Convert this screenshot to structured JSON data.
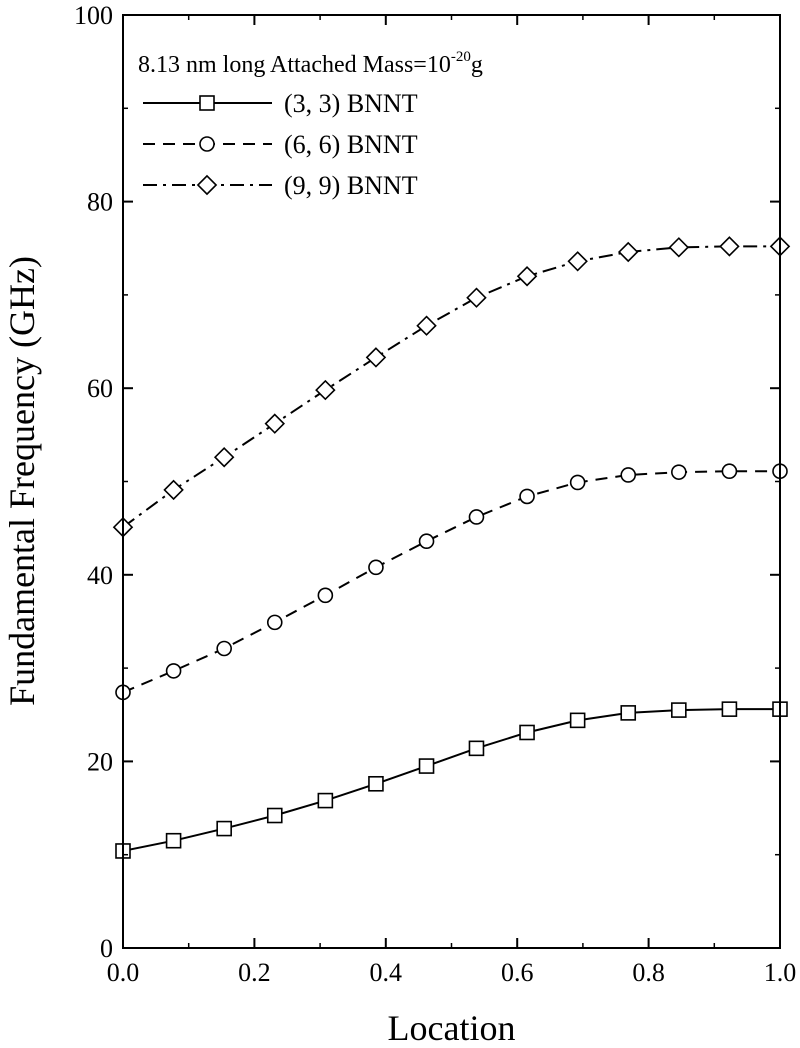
{
  "chart_data": {
    "type": "line",
    "xlabel": "Location",
    "ylabel": "Fundamental Frequency (GHz)",
    "xlim": [
      0.0,
      1.0
    ],
    "ylim": [
      0,
      100
    ],
    "xticks": [
      0.0,
      0.2,
      0.4,
      0.6,
      0.8,
      1.0
    ],
    "xtick_labels": [
      "0.0",
      "0.2",
      "0.4",
      "0.6",
      "0.8",
      "1.0"
    ],
    "yticks": [
      0,
      20,
      40,
      60,
      80,
      100
    ],
    "ytick_labels": [
      "0",
      "20",
      "40",
      "60",
      "80",
      "100"
    ],
    "grid": false,
    "legend_position": "top-left",
    "annotation": {
      "prefix": "8.13 nm long Attached Mass=10",
      "exponent": "-20",
      "suffix": "g"
    },
    "x": [
      0.0,
      0.077,
      0.154,
      0.231,
      0.308,
      0.385,
      0.462,
      0.538,
      0.615,
      0.692,
      0.769,
      0.846,
      0.923,
      1.0
    ],
    "series": [
      {
        "name": "(3, 3) BNNT",
        "marker": "square",
        "line_style": "solid",
        "values": [
          10.4,
          11.5,
          12.8,
          14.2,
          15.8,
          17.6,
          19.5,
          21.4,
          23.1,
          24.4,
          25.2,
          25.5,
          25.6,
          25.6
        ]
      },
      {
        "name": "(6, 6) BNNT",
        "marker": "circle",
        "line_style": "dashed",
        "values": [
          27.4,
          29.7,
          32.1,
          34.9,
          37.8,
          40.8,
          43.6,
          46.2,
          48.4,
          49.9,
          50.7,
          51.0,
          51.1,
          51.1
        ]
      },
      {
        "name": "(9, 9) BNNT",
        "marker": "diamond",
        "line_style": "dashdot",
        "values": [
          45.1,
          49.1,
          52.6,
          56.2,
          59.8,
          63.3,
          66.7,
          69.7,
          72.0,
          73.6,
          74.6,
          75.1,
          75.2,
          75.2
        ]
      }
    ]
  }
}
